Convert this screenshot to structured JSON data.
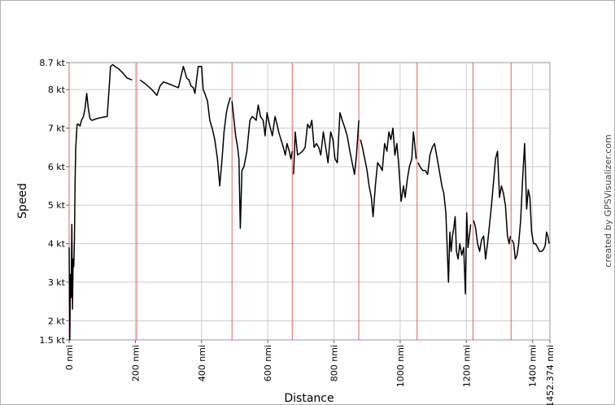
{
  "chart_data": {
    "type": "line",
    "xlabel": "Distance",
    "ylabel": "Speed",
    "credit": "created by GPSVisualizer.com",
    "xlim": [
      0,
      1452.374
    ],
    "ylim": [
      1.5,
      8.7
    ],
    "y_ticks": [
      {
        "value": 1.5,
        "label": "1.5 kt"
      },
      {
        "value": 2,
        "label": "2 kt"
      },
      {
        "value": 3,
        "label": "3 kt"
      },
      {
        "value": 4,
        "label": "4 kt"
      },
      {
        "value": 5,
        "label": "5 kt"
      },
      {
        "value": 6,
        "label": "6 kt"
      },
      {
        "value": 7,
        "label": "7 kt"
      },
      {
        "value": 8,
        "label": "8 kt"
      },
      {
        "value": 8.7,
        "label": "8.7 kt"
      }
    ],
    "x_ticks": [
      {
        "value": 0,
        "label": "0 nmi"
      },
      {
        "value": 200,
        "label": "200 nmi"
      },
      {
        "value": 400,
        "label": "400 nmi"
      },
      {
        "value": 600,
        "label": "600 nmi"
      },
      {
        "value": 800,
        "label": "800 nmi"
      },
      {
        "value": 1000,
        "label": "1000 nmi"
      },
      {
        "value": 1200,
        "label": "1200 nmi"
      },
      {
        "value": 1400,
        "label": "1400 nmi"
      },
      {
        "value": 1452.374,
        "label": "1452.374 nmi"
      }
    ],
    "segment_markers": [
      0,
      204,
      492,
      674,
      875,
      1051,
      1220,
      1335
    ],
    "grid": true,
    "series_color": "#000000",
    "marker_color": "#e06060",
    "grid_color": "#cccccc",
    "segments": [
      {
        "x": [
          0,
          2,
          4,
          6,
          8,
          10,
          12,
          14,
          16,
          18,
          20,
          24,
          28,
          33,
          37,
          43,
          48,
          53,
          58,
          63,
          68,
          75,
          85,
          100,
          115,
          125,
          132,
          138,
          148,
          160,
          175,
          190
        ],
        "y": [
          3.9,
          1.5,
          3.2,
          2.6,
          4.5,
          2.3,
          3.6,
          3.4,
          4.1,
          5.6,
          6.5,
          7.1,
          7.1,
          7.05,
          7.2,
          7.3,
          7.5,
          7.9,
          7.5,
          7.25,
          7.2,
          7.22,
          7.25,
          7.28,
          7.3,
          8.6,
          8.65,
          8.6,
          8.55,
          8.45,
          8.3,
          8.25
        ]
      },
      {
        "x": [
          214,
          230,
          250,
          265,
          275,
          285,
          300,
          315,
          330,
          345,
          355,
          362,
          368,
          375,
          380,
          390,
          400,
          405,
          410,
          418,
          425,
          432,
          440,
          448,
          455,
          462,
          468,
          475,
          480,
          487
        ],
        "y": [
          8.25,
          8.15,
          8.0,
          7.85,
          8.1,
          8.2,
          8.15,
          8.1,
          8.05,
          8.6,
          8.3,
          8.25,
          8.1,
          8.05,
          7.9,
          8.6,
          8.6,
          8.0,
          7.9,
          7.7,
          7.2,
          7.0,
          6.7,
          6.2,
          5.5,
          6.2,
          6.9,
          7.4,
          7.6,
          7.8
        ]
      },
      {
        "x": [
          492,
          497,
          503,
          509,
          513,
          517,
          522,
          528,
          537,
          546,
          553,
          560,
          565,
          571,
          578,
          586,
          592,
          598,
          605,
          614,
          622,
          628,
          633,
          640,
          647,
          653,
          658,
          665,
          670,
          674
        ],
        "y": [
          7.7,
          7.3,
          6.8,
          6.5,
          6.2,
          4.4,
          5.9,
          6.0,
          6.4,
          7.2,
          7.3,
          7.25,
          7.2,
          7.6,
          7.3,
          7.2,
          6.8,
          7.4,
          7.1,
          6.8,
          7.3,
          7.1,
          6.9,
          6.7,
          6.5,
          6.3,
          6.6,
          6.4,
          6.2,
          6.4
        ]
      },
      {
        "x": [
          678,
          683,
          690,
          698,
          705,
          713,
          720,
          727,
          733,
          740,
          747,
          754,
          760,
          768,
          775,
          782,
          790,
          797,
          803,
          810,
          818,
          825,
          833,
          840,
          848,
          855,
          862,
          868,
          872,
          875
        ],
        "y": [
          5.8,
          6.9,
          6.3,
          6.35,
          6.4,
          6.5,
          7.1,
          7.0,
          7.2,
          6.5,
          6.6,
          6.5,
          6.3,
          6.9,
          6.5,
          6.1,
          6.9,
          6.7,
          6.2,
          6.1,
          7.4,
          7.2,
          7.0,
          6.8,
          6.4,
          6.1,
          5.8,
          6.3,
          6.8,
          7.2
        ]
      },
      {
        "x": [
          880,
          886,
          893,
          900,
          906,
          913,
          918,
          925,
          932,
          940,
          946,
          953,
          960,
          966,
          972,
          978,
          984,
          990,
          996,
          1003,
          1010,
          1015,
          1022,
          1028,
          1035,
          1040,
          1045,
          1048
        ],
        "y": [
          6.7,
          6.5,
          6.2,
          5.9,
          5.5,
          5.2,
          4.7,
          5.5,
          6.1,
          6.0,
          5.9,
          6.6,
          6.4,
          6.9,
          6.7,
          7.0,
          6.3,
          6.6,
          6.0,
          5.1,
          5.5,
          5.2,
          5.7,
          6.0,
          6.2,
          6.9,
          6.5,
          6.2
        ]
      },
      {
        "x": [
          1054,
          1060,
          1068,
          1076,
          1083,
          1090,
          1097,
          1104,
          1112,
          1120,
          1126,
          1132,
          1138,
          1142,
          1146,
          1150,
          1154,
          1158,
          1162,
          1166,
          1170,
          1175,
          1180,
          1186,
          1192,
          1197,
          1201,
          1205,
          1209,
          1213
        ],
        "y": [
          6.1,
          6.0,
          5.9,
          5.9,
          5.8,
          6.3,
          6.5,
          6.6,
          6.2,
          5.8,
          5.5,
          5.3,
          4.8,
          3.9,
          3.0,
          4.3,
          3.8,
          4.2,
          4.4,
          4.7,
          3.8,
          3.6,
          4.0,
          3.7,
          3.9,
          2.7,
          4.8,
          3.9,
          4.2,
          4.5
        ]
      },
      {
        "x": [
          1222,
          1228,
          1234,
          1240,
          1246,
          1252,
          1258,
          1264,
          1270,
          1276,
          1282,
          1288,
          1294,
          1300,
          1306,
          1312,
          1318,
          1324,
          1329,
          1333
        ],
        "y": [
          4.6,
          4.4,
          4.0,
          3.8,
          4.1,
          4.2,
          3.6,
          4.0,
          4.5,
          5.0,
          5.6,
          6.2,
          6.4,
          5.2,
          5.5,
          5.3,
          5.0,
          4.2,
          4.0,
          4.2
        ]
      },
      {
        "x": [
          1338,
          1343,
          1348,
          1353,
          1358,
          1364,
          1370,
          1376,
          1382,
          1387,
          1392,
          1397,
          1403,
          1409,
          1415,
          1421,
          1427,
          1433,
          1438,
          1442,
          1446,
          1450
        ],
        "y": [
          4.1,
          4.0,
          3.6,
          3.7,
          4.0,
          4.6,
          5.7,
          6.6,
          4.9,
          5.4,
          5.2,
          4.3,
          4.0,
          4.0,
          3.9,
          3.8,
          3.8,
          3.85,
          3.95,
          4.3,
          4.2,
          4.0
        ]
      }
    ]
  }
}
